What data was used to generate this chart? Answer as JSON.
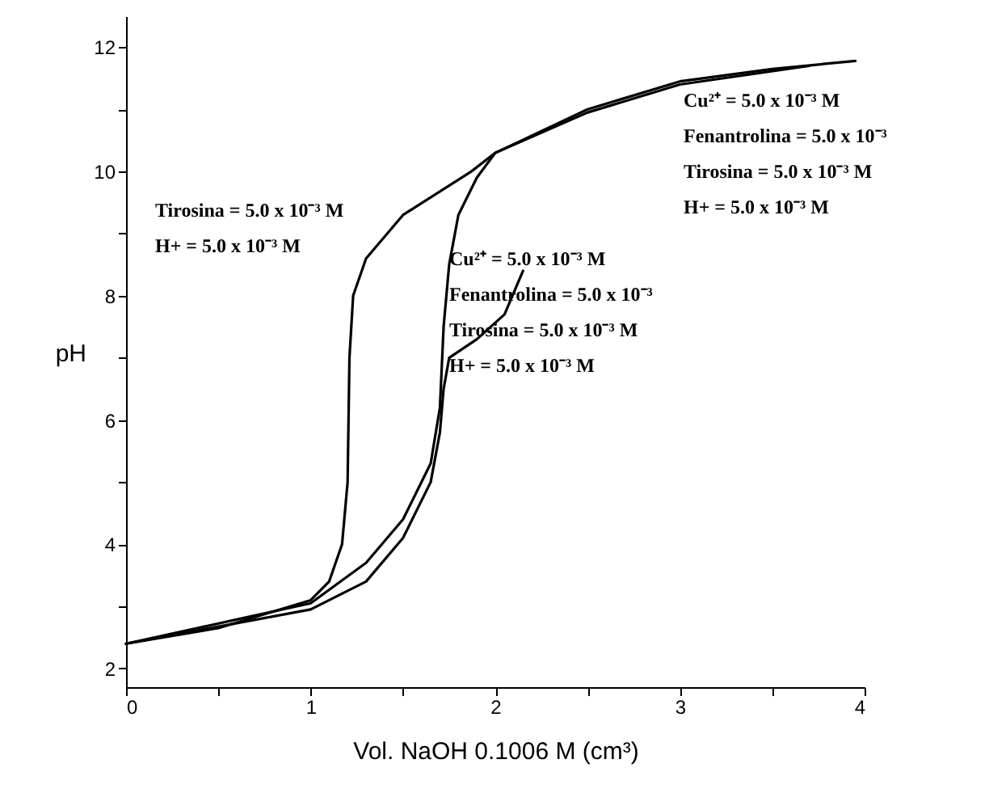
{
  "chart_data": {
    "type": "line",
    "xlabel": "Vol. NaOH 0.1006 M (cm³)",
    "ylabel": "pH",
    "xlim": [
      0,
      4
    ],
    "ylim": [
      1.7,
      12.5
    ],
    "xticks": [
      0,
      {
        "value": 0.5,
        "label": null
      },
      1,
      {
        "value": 1.5,
        "label": null
      },
      2,
      {
        "value": 2.5,
        "label": null
      },
      3,
      {
        "value": 3.5,
        "label": null
      },
      4
    ],
    "yticks": [
      2,
      {
        "value": 3,
        "label": null
      },
      4,
      {
        "value": 5,
        "label": null
      },
      6,
      {
        "value": 7,
        "label": null
      },
      8,
      {
        "value": 9,
        "label": null
      },
      10,
      {
        "value": 11,
        "label": null
      },
      12
    ],
    "grid": false,
    "marker": "none",
    "line_style": "solid",
    "series": [
      {
        "color": "#000000",
        "x": [
          0,
          0.5,
          1.0,
          1.1,
          1.17,
          1.2,
          1.21,
          1.23,
          1.3,
          1.5,
          1.87,
          2.0,
          2.5,
          3.0,
          3.5,
          3.95
        ],
        "values": [
          2.4,
          2.65,
          3.1,
          3.4,
          4.0,
          5.0,
          7.0,
          8.0,
          8.6,
          9.3,
          10.0,
          10.3,
          11.0,
          11.45,
          11.65,
          11.78
        ]
      },
      {
        "color": "#000000",
        "x": [
          0,
          1.0,
          1.3,
          1.5,
          1.65,
          1.7,
          1.72,
          1.75,
          1.8,
          1.9,
          2.0,
          2.5,
          3.0,
          3.7
        ],
        "values": [
          2.4,
          3.05,
          3.7,
          4.4,
          5.3,
          6.2,
          7.5,
          8.5,
          9.3,
          9.9,
          10.3,
          10.95,
          11.4,
          11.7
        ]
      },
      {
        "color": "#000000",
        "x": [
          0,
          1.0,
          1.3,
          1.5,
          1.65,
          1.7,
          1.72,
          1.75,
          1.9,
          2.05,
          2.15
        ],
        "values": [
          2.4,
          2.95,
          3.4,
          4.1,
          5.0,
          5.8,
          6.5,
          7.0,
          7.3,
          7.7,
          8.4
        ]
      }
    ],
    "annotations": [
      "Tirosina = 5.0 x 10⁻³ M",
      "H+ = 5.0 x 10⁻³ M",
      "Cu²⁺ = 5.0 x 10⁻³ M",
      "Fenantrolina = 5.0 x 10⁻³",
      "Tirosina = 5.0 x 10⁻³ M",
      "H+ = 5.0 x 10⁻³ M",
      "Cu²⁺ = 5.0 x 10⁻³ M",
      "Fenantrolina = 5.0 x 10⁻³",
      "Tirosina = 5.0 x 10⁻³ M",
      "H+ = 5.0 x 10⁻³ M"
    ]
  }
}
